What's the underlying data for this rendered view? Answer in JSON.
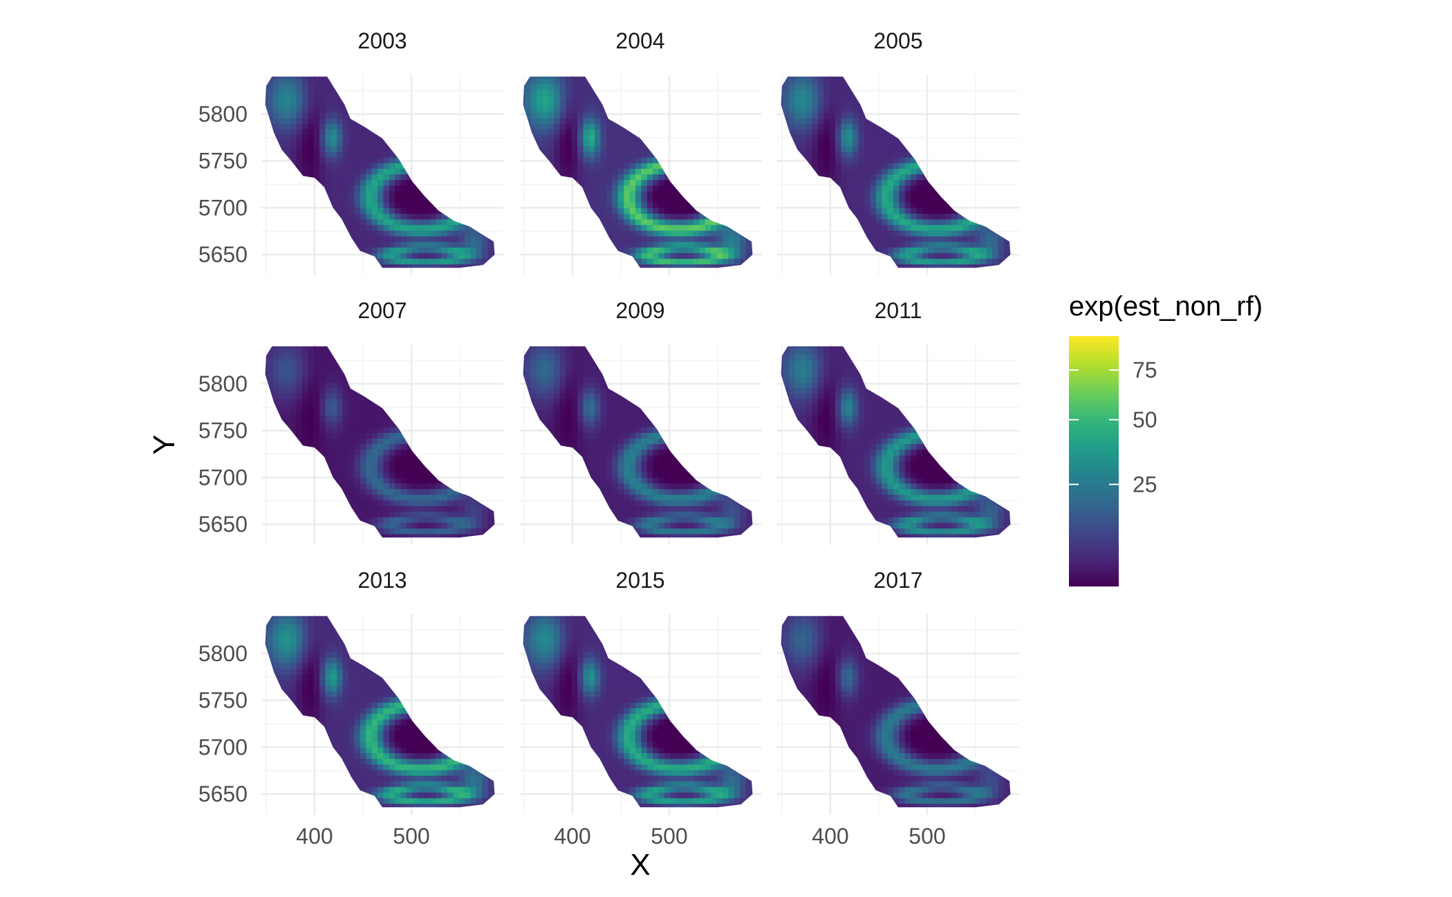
{
  "chart_data": {
    "type": "heatmap",
    "description_of_type": "faceted raster map",
    "xlabel": "X",
    "ylabel": "Y",
    "x_ticks": [
      400,
      500
    ],
    "y_ticks": [
      5650,
      5700,
      5750,
      5800
    ],
    "x_tick_labels": [
      "400",
      "500"
    ],
    "y_tick_labels": [
      "5650",
      "5700",
      "5750",
      "5800"
    ],
    "xlim": [
      345,
      595
    ],
    "ylim": [
      5628,
      5842
    ],
    "grid": true,
    "legend": {
      "title": "exp(est_non_rf)",
      "placement": "right",
      "colormap": "viridis",
      "breaks": [
        25,
        50,
        75
      ],
      "break_labels": [
        "25",
        "50",
        "75"
      ],
      "value_range": [
        3,
        95
      ],
      "colors": [
        "#440154",
        "#482878",
        "#3e4989",
        "#31688e",
        "#26828e",
        "#1f9e89",
        "#35b779",
        "#6ece58",
        "#b5de2b",
        "#fde725"
      ]
    },
    "facets": [
      {
        "title": "2003",
        "intensity": 0.78
      },
      {
        "title": "2004",
        "intensity": 1.0
      },
      {
        "title": "2005",
        "intensity": 0.8
      },
      {
        "title": "2007",
        "intensity": 0.45
      },
      {
        "title": "2009",
        "intensity": 0.58
      },
      {
        "title": "2011",
        "intensity": 0.72
      },
      {
        "title": "2013",
        "intensity": 0.88
      },
      {
        "title": "2015",
        "intensity": 0.82
      },
      {
        "title": "2017",
        "intensity": 0.55
      }
    ]
  }
}
